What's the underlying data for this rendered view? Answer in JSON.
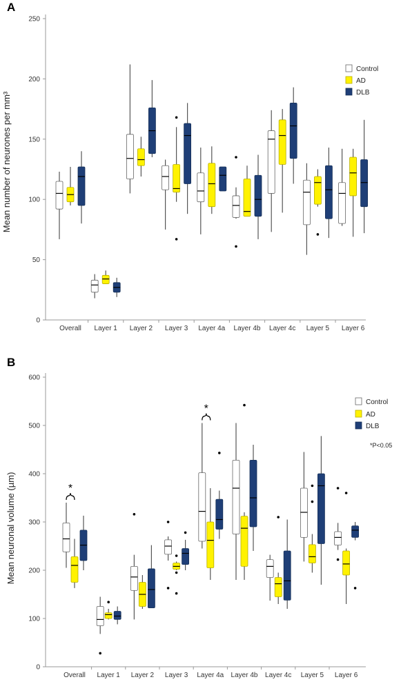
{
  "colors": {
    "Control": "#ffffff",
    "AD": "#fff200",
    "DLB": "#1f3f77",
    "whisker": "#555555",
    "axis": "#999999",
    "median": "#000000"
  },
  "chart_data": [
    {
      "panel": "A",
      "type": "box",
      "ylabel": "Mean number of neurones per mm³",
      "xlabel": "",
      "ylim": [
        0,
        250
      ],
      "yticks": [
        0,
        50,
        100,
        150,
        200,
        250
      ],
      "grid": false,
      "legend_position": "right",
      "categories": [
        "Overall",
        "Layer 1",
        "Layer 2",
        "Layer 3",
        "Layer 4a",
        "Layer 4b",
        "Layer 4c",
        "Layer 5",
        "Layer 6"
      ],
      "series": [
        {
          "name": "Control",
          "boxes": [
            {
              "min": 67,
              "q1": 92,
              "median": 105,
              "q3": 115,
              "max": 123,
              "outliers": []
            },
            {
              "min": 18,
              "q1": 23,
              "median": 29,
              "q3": 33,
              "max": 38,
              "outliers": []
            },
            {
              "min": 105,
              "q1": 117,
              "median": 134,
              "q3": 154,
              "max": 212,
              "outliers": []
            },
            {
              "min": 75,
              "q1": 108,
              "median": 119,
              "q3": 128,
              "max": 133,
              "outliers": []
            },
            {
              "min": 71,
              "q1": 98,
              "median": 107,
              "q3": 122,
              "max": 143,
              "outliers": []
            },
            {
              "min": 84,
              "q1": 85,
              "median": 95,
              "q3": 103,
              "max": 110,
              "outliers": [
                135,
                61
              ]
            },
            {
              "min": 73,
              "q1": 105,
              "median": 150,
              "q3": 157,
              "max": 174,
              "outliers": []
            },
            {
              "min": 54,
              "q1": 79,
              "median": 106,
              "q3": 116,
              "max": 130,
              "outliers": []
            },
            {
              "min": 78,
              "q1": 80,
              "median": 105,
              "q3": 114,
              "max": 142,
              "outliers": []
            }
          ]
        },
        {
          "name": "AD",
          "boxes": [
            {
              "min": 95,
              "q1": 98,
              "median": 104,
              "q3": 110,
              "max": 127,
              "outliers": []
            },
            {
              "min": 30,
              "q1": 30,
              "median": 34,
              "q3": 37,
              "max": 41,
              "outliers": []
            },
            {
              "min": 119,
              "q1": 128,
              "median": 133,
              "q3": 142,
              "max": 152,
              "outliers": []
            },
            {
              "min": 98,
              "q1": 106,
              "median": 109,
              "q3": 129,
              "max": 160,
              "outliers": [
                168,
                67
              ]
            },
            {
              "min": 88,
              "q1": 94,
              "median": 113,
              "q3": 130,
              "max": 144,
              "outliers": []
            },
            {
              "min": 86,
              "q1": 86,
              "median": 90,
              "q3": 117,
              "max": 128,
              "outliers": []
            },
            {
              "min": 89,
              "q1": 129,
              "median": 153,
              "q3": 166,
              "max": 175,
              "outliers": []
            },
            {
              "min": 94,
              "q1": 96,
              "median": 114,
              "q3": 119,
              "max": 125,
              "outliers": [
                71
              ]
            },
            {
              "min": 69,
              "q1": 103,
              "median": 122,
              "q3": 135,
              "max": 142,
              "outliers": []
            }
          ]
        },
        {
          "name": "DLB",
          "boxes": [
            {
              "min": 80,
              "q1": 95,
              "median": 119,
              "q3": 127,
              "max": 140,
              "outliers": []
            },
            {
              "min": 19,
              "q1": 23,
              "median": 27,
              "q3": 31,
              "max": 35,
              "outliers": []
            },
            {
              "min": 135,
              "q1": 138,
              "median": 157,
              "q3": 176,
              "max": 199,
              "outliers": []
            },
            {
              "min": 88,
              "q1": 113,
              "median": 153,
              "q3": 163,
              "max": 180,
              "outliers": []
            },
            {
              "min": 107,
              "q1": 107,
              "median": 120,
              "q3": 127,
              "max": 127,
              "outliers": []
            },
            {
              "min": 67,
              "q1": 86,
              "median": 100,
              "q3": 120,
              "max": 137,
              "outliers": []
            },
            {
              "min": 113,
              "q1": 134,
              "median": 161,
              "q3": 180,
              "max": 193,
              "outliers": []
            },
            {
              "min": 68,
              "q1": 84,
              "median": 108,
              "q3": 128,
              "max": 143,
              "outliers": []
            },
            {
              "min": 72,
              "q1": 94,
              "median": 114,
              "q3": 133,
              "max": 166,
              "outliers": []
            }
          ]
        }
      ],
      "annotations": []
    },
    {
      "panel": "B",
      "type": "box",
      "ylabel": "Mean neuronal volume (µm)",
      "xlabel": "",
      "ylim": [
        0,
        600
      ],
      "yticks": [
        0,
        100,
        200,
        300,
        400,
        500,
        600
      ],
      "grid": false,
      "legend_position": "right",
      "note": "*P<0.05",
      "categories": [
        "Overall",
        "Layer 1",
        "Layer 2",
        "Layer 3",
        "Layer 4a",
        "Layer 4b",
        "Layer 4c",
        "Layer 5",
        "Layer 6"
      ],
      "series": [
        {
          "name": "Control",
          "boxes": [
            {
              "min": 205,
              "q1": 238,
              "median": 265,
              "q3": 298,
              "max": 340,
              "outliers": []
            },
            {
              "min": 68,
              "q1": 85,
              "median": 98,
              "q3": 125,
              "max": 145,
              "outliers": [
                28
              ]
            },
            {
              "min": 98,
              "q1": 158,
              "median": 186,
              "q3": 208,
              "max": 232,
              "outliers": [
                316
              ]
            },
            {
              "min": 220,
              "q1": 233,
              "median": 250,
              "q3": 263,
              "max": 270,
              "outliers": [
                300,
                163
              ]
            },
            {
              "min": 245,
              "q1": 260,
              "median": 322,
              "q3": 402,
              "max": 505,
              "outliers": []
            },
            {
              "min": 180,
              "q1": 275,
              "median": 370,
              "q3": 428,
              "max": 505,
              "outliers": []
            },
            {
              "min": 137,
              "q1": 185,
              "median": 208,
              "q3": 222,
              "max": 232,
              "outliers": []
            },
            {
              "min": 218,
              "q1": 268,
              "median": 320,
              "q3": 370,
              "max": 445,
              "outliers": []
            },
            {
              "min": 242,
              "q1": 252,
              "median": 268,
              "q3": 280,
              "max": 298,
              "outliers": [
                370,
                222
              ]
            }
          ]
        },
        {
          "name": "AD",
          "boxes": [
            {
              "min": 163,
              "q1": 175,
              "median": 210,
              "q3": 228,
              "max": 265,
              "outliers": []
            },
            {
              "min": 98,
              "q1": 100,
              "median": 108,
              "q3": 112,
              "max": 120,
              "outliers": [
                134
              ]
            },
            {
              "min": 120,
              "q1": 125,
              "median": 150,
              "q3": 175,
              "max": 190,
              "outliers": []
            },
            {
              "min": 200,
              "q1": 202,
              "median": 208,
              "q3": 215,
              "max": 218,
              "outliers": [
                230,
                195,
                152
              ]
            },
            {
              "min": 180,
              "q1": 205,
              "median": 262,
              "q3": 300,
              "max": 370,
              "outliers": []
            },
            {
              "min": 180,
              "q1": 208,
              "median": 287,
              "q3": 312,
              "max": 320,
              "outliers": [
                542
              ]
            },
            {
              "min": 130,
              "q1": 145,
              "median": 172,
              "q3": 185,
              "max": 195,
              "outliers": [
                310
              ]
            },
            {
              "min": 195,
              "q1": 215,
              "median": 228,
              "q3": 253,
              "max": 275,
              "outliers": [
                375,
                342
              ]
            },
            {
              "min": 130,
              "q1": 190,
              "median": 213,
              "q3": 240,
              "max": 245,
              "outliers": [
                360
              ]
            }
          ]
        },
        {
          "name": "DLB",
          "boxes": [
            {
              "min": 200,
              "q1": 220,
              "median": 252,
              "q3": 283,
              "max": 313,
              "outliers": []
            },
            {
              "min": 88,
              "q1": 98,
              "median": 105,
              "q3": 115,
              "max": 125,
              "outliers": []
            },
            {
              "min": 122,
              "q1": 122,
              "median": 160,
              "q3": 203,
              "max": 252,
              "outliers": []
            },
            {
              "min": 200,
              "q1": 212,
              "median": 235,
              "q3": 245,
              "max": 263,
              "outliers": [
                278
              ]
            },
            {
              "min": 265,
              "q1": 285,
              "median": 305,
              "q3": 347,
              "max": 365,
              "outliers": [
                443
              ]
            },
            {
              "min": 240,
              "q1": 290,
              "median": 350,
              "q3": 428,
              "max": 460,
              "outliers": []
            },
            {
              "min": 120,
              "q1": 138,
              "median": 178,
              "q3": 240,
              "max": 305,
              "outliers": []
            },
            {
              "min": 170,
              "q1": 255,
              "median": 375,
              "q3": 400,
              "max": 478,
              "outliers": []
            },
            {
              "min": 262,
              "q1": 268,
              "median": 283,
              "q3": 292,
              "max": 300,
              "outliers": [
                163
              ]
            }
          ]
        }
      ],
      "annotations": [
        {
          "category": "Overall",
          "text": "*",
          "between": [
            "Control",
            "AD"
          ]
        },
        {
          "category": "Layer 4a",
          "text": "*",
          "between": [
            "Control",
            "AD"
          ]
        }
      ]
    }
  ]
}
